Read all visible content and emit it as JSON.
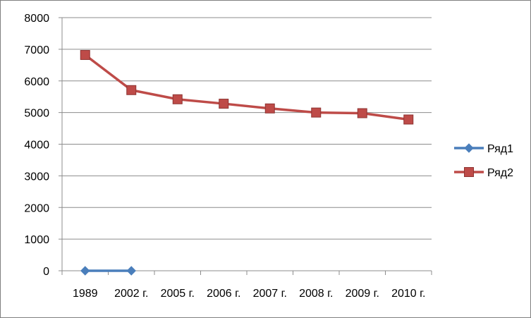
{
  "chart_data": {
    "type": "line",
    "categories": [
      "1989",
      "2002 г.",
      "2005 г.",
      "2006 г.",
      "2007 г.",
      "2008 г.",
      "2009 г.",
      "2010 г."
    ],
    "ylim": [
      0,
      8000
    ],
    "yticks": [
      0,
      1000,
      2000,
      3000,
      4000,
      5000,
      6000,
      7000,
      8000
    ],
    "grid": true,
    "legend_position": "right",
    "series": [
      {
        "name": "Ряд1",
        "color": "#4a7ebb",
        "marker": "diamond",
        "values": [
          0,
          0,
          null,
          null,
          null,
          null,
          null,
          null
        ]
      },
      {
        "name": "Ряд2",
        "color": "#be4b48",
        "marker": "square",
        "values": [
          6820,
          5710,
          5420,
          5280,
          5130,
          5000,
          4980,
          4780
        ]
      }
    ]
  }
}
